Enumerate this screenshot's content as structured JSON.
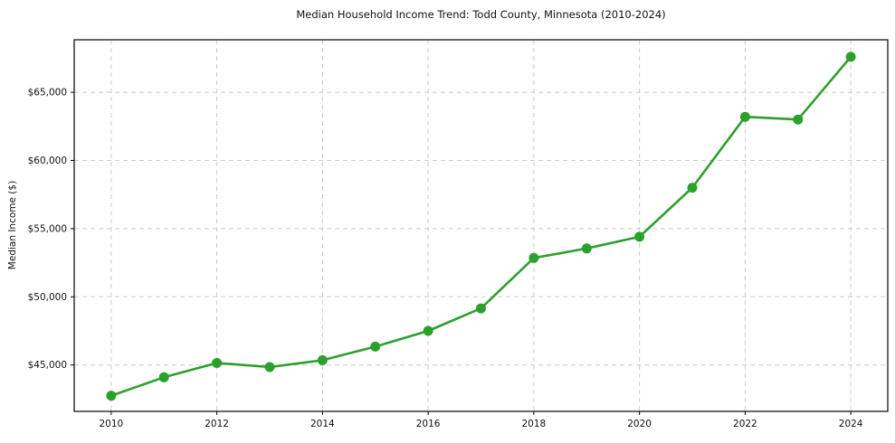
{
  "chart_data": {
    "type": "line",
    "title": "Median Household Income Trend: Todd County, Minnesota (2010-2024)",
    "xlabel": "",
    "ylabel": "Median Income ($)",
    "series": [
      {
        "name": "Median Household Income",
        "x": [
          2010,
          2011,
          2012,
          2013,
          2014,
          2015,
          2016,
          2017,
          2018,
          2019,
          2020,
          2021,
          2022,
          2023,
          2024
        ],
        "values": [
          42750,
          44100,
          45150,
          44850,
          45350,
          46350,
          47500,
          49150,
          52850,
          53550,
          54400,
          58000,
          63200,
          63000,
          67600
        ]
      }
    ],
    "xlim": [
      2009.3,
      2024.7
    ],
    "ylim": [
      41600,
      68850
    ],
    "xticks": [
      {
        "value": 2010,
        "label": "2010"
      },
      {
        "value": 2012,
        "label": "2012"
      },
      {
        "value": 2014,
        "label": "2014"
      },
      {
        "value": 2016,
        "label": "2016"
      },
      {
        "value": 2018,
        "label": "2018"
      },
      {
        "value": 2020,
        "label": "2020"
      },
      {
        "value": 2022,
        "label": "2022"
      },
      {
        "value": 2024,
        "label": "2024"
      }
    ],
    "yticks": [
      {
        "value": 45000,
        "label": "$45,000"
      },
      {
        "value": 50000,
        "label": "$50,000"
      },
      {
        "value": 55000,
        "label": "$55,000"
      },
      {
        "value": 60000,
        "label": "$60,000"
      },
      {
        "value": 65000,
        "label": "$65,000"
      }
    ],
    "grid": "on",
    "grid_style": "dashed",
    "legend": "none",
    "colors": {
      "line": "#2ca02c",
      "marker": "#2ca02c",
      "grid": "#cbcbcb",
      "spine": "#000000",
      "text": "#111111",
      "background": "#ffffff"
    }
  }
}
